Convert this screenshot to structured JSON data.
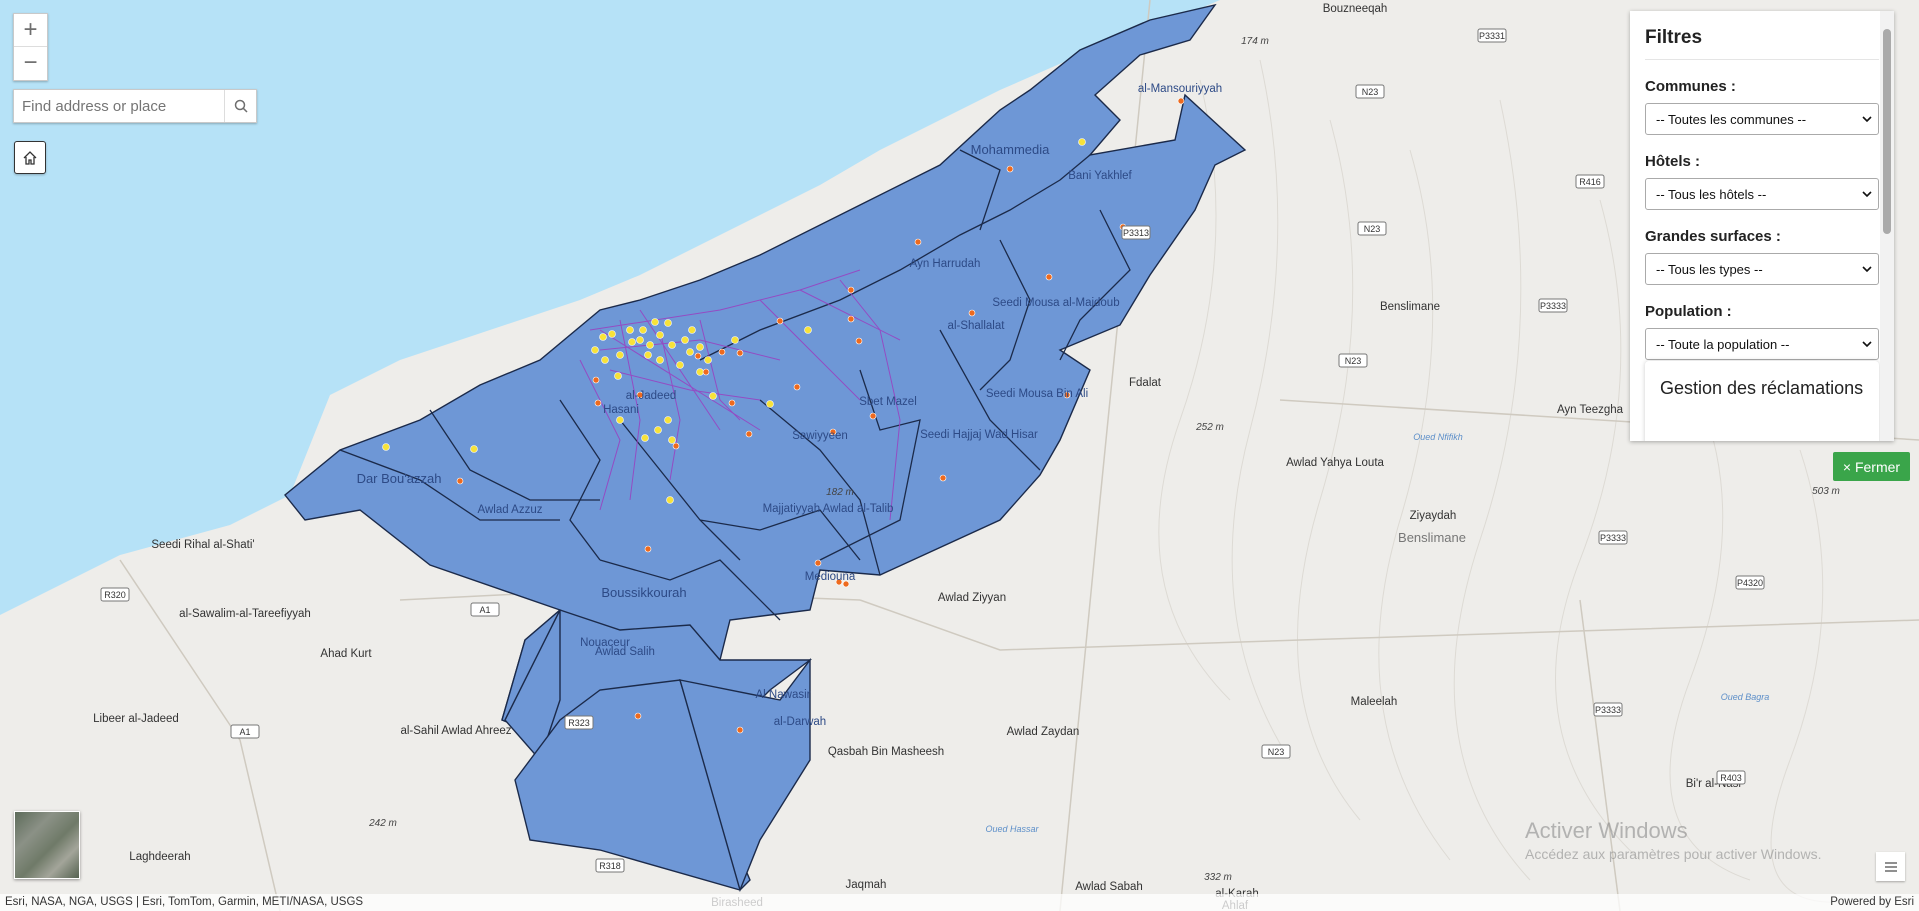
{
  "map": {
    "colors": {
      "sea": "#b6e2f7",
      "land": "#eeedea",
      "commune_fill": "#6e97d6",
      "commune_stroke": "#1b2a4a",
      "road_purple": "#9a3fc0",
      "poi_yellow": "#f7e23a",
      "poi_orange": "#ee6a1e"
    },
    "place_labels": [
      {
        "name": "Bouzneeqah",
        "kind": "place"
      },
      {
        "name": "Benslimane",
        "kind": "place"
      },
      {
        "name": "Fdalat",
        "kind": "place"
      },
      {
        "name": "Awlad Yahya Louta",
        "kind": "place"
      },
      {
        "name": "Ziyaydah",
        "kind": "place"
      },
      {
        "name": "Benslimane",
        "kind": "region"
      },
      {
        "name": "Ayn Teezgha",
        "kind": "place"
      },
      {
        "name": "Seedi Rihal al-Shati'",
        "kind": "place"
      },
      {
        "name": "al-Sawalim-al-Tareefiyyah",
        "kind": "place"
      },
      {
        "name": "Ahad Kurt",
        "kind": "place"
      },
      {
        "name": "Libeer al-Jadeed",
        "kind": "place"
      },
      {
        "name": "al-Sahil Awlad Ahreez",
        "kind": "place"
      },
      {
        "name": "Laghdeerah",
        "kind": "place"
      },
      {
        "name": "Awlad Ziyyan",
        "kind": "place"
      },
      {
        "name": "Qasbah Bin Masheesh",
        "kind": "place"
      },
      {
        "name": "Awlad Zaydan",
        "kind": "place"
      },
      {
        "name": "Maleelah",
        "kind": "place"
      },
      {
        "name": "Bi'r al-Nasr",
        "kind": "place"
      },
      {
        "name": "Jaqmah",
        "kind": "place"
      },
      {
        "name": "Awlad Sabah",
        "kind": "place"
      },
      {
        "name": "al-Karah",
        "kind": "place"
      },
      {
        "name": "Birasheed",
        "kind": "place"
      },
      {
        "name": "Ahlaf",
        "kind": "place"
      }
    ],
    "commune_labels": [
      "al-Mansouriyyah",
      "Mohammedia",
      "Bani Yakhlef",
      "Ayn Harrudah",
      "Seedi Mousa al-Majdoub",
      "al-Shallalat",
      "Seedi Mousa Bin Ali",
      "Dar Bou'azzah",
      "Awlad Azzuz",
      "al-Jadeed",
      "Hasani",
      "Seedi Hajjaj Wad Hisar",
      "Sbet Mazel",
      "Sawiyyeen",
      "Majjatiyyah Awlad al-Talib",
      "Boussikkourah",
      "Mediouna",
      "Nouaceur",
      "Awlad Salih",
      "Al Nawasir",
      "al-Darwah"
    ],
    "elevations": [
      "174 m",
      "252 m",
      "503 m",
      "182 m",
      "242 m",
      "332 m"
    ],
    "rivers": [
      "Oued Nfifikh",
      "Oued Bagra",
      "Oued Hassar"
    ],
    "road_shields": [
      "P3331",
      "N23",
      "R416",
      "P3313",
      "N23",
      "P3333",
      "N23",
      "P3333",
      "P4320",
      "R320",
      "A1",
      "A1",
      "R323",
      "P3333",
      "N23",
      "R403",
      "R318"
    ]
  },
  "controls": {
    "zoom_in": "+",
    "zoom_out": "−",
    "search_placeholder": "Find address or place",
    "icons": {
      "search": "search-icon",
      "home": "home-icon",
      "layers": "layer-list-icon"
    }
  },
  "panel": {
    "title": "Filtres",
    "filters": [
      {
        "label": "Communes :",
        "value": "-- Toutes les communes --"
      },
      {
        "label": "Hôtels :",
        "value": "-- Tous les hôtels --"
      },
      {
        "label": "Grandes surfaces :",
        "value": "-- Tous les types --"
      },
      {
        "label": "Population :",
        "value": "-- Toute la population --"
      }
    ],
    "card_title": "Gestion des réclamations",
    "close_label": "× Fermer",
    "close_color": "#3aa54a"
  },
  "attribution": {
    "left": "Esri, NASA, NGA, USGS | Esri, TomTom, Garmin, METI/NASA, USGS",
    "right": "Powered by Esri"
  },
  "watermark": {
    "title": "Activer Windows",
    "subtitle": "Accédez aux paramètres pour activer Windows."
  }
}
